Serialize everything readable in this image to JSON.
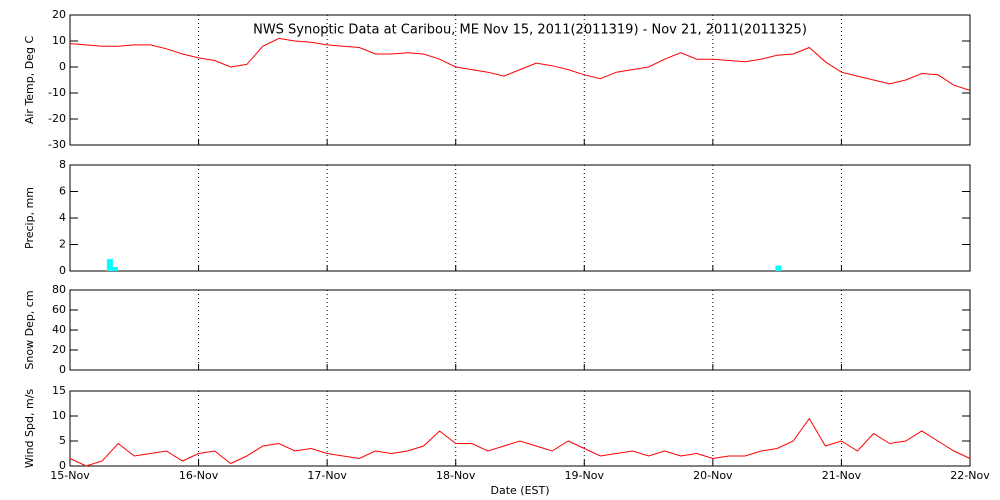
{
  "chart_data": [
    {
      "type": "line",
      "title": "NWS Synoptic Data at Caribou, ME   Nov 15, 2011(2011319) - Nov 21, 2011(2011325)",
      "y_label": "Air Temp, Deg C",
      "xlim": [
        0,
        7
      ],
      "xticks": [
        1,
        2,
        3,
        4,
        5,
        6
      ],
      "grid": true,
      "ylim": [
        -30,
        20
      ],
      "yticks": [
        -30,
        -20,
        -10,
        0,
        10,
        20
      ],
      "x": [
        0,
        0.125,
        0.25,
        0.375,
        0.5,
        0.625,
        0.75,
        0.875,
        1,
        1.125,
        1.25,
        1.375,
        1.5,
        1.625,
        1.75,
        1.875,
        2,
        2.125,
        2.25,
        2.375,
        2.5,
        2.625,
        2.75,
        2.875,
        3,
        3.125,
        3.25,
        3.375,
        3.5,
        3.625,
        3.75,
        3.875,
        4,
        4.125,
        4.25,
        4.375,
        4.5,
        4.625,
        4.75,
        4.875,
        5,
        5.125,
        5.25,
        5.375,
        5.5,
        5.625,
        5.75,
        5.875,
        6,
        6.125,
        6.25,
        6.375,
        6.5,
        6.625,
        6.75,
        6.875,
        7
      ],
      "series": [
        {
          "color": "#ff0000",
          "values": [
            9,
            8.5,
            8,
            8,
            8.5,
            8.5,
            7,
            5,
            3.5,
            2.5,
            0,
            1,
            8,
            11,
            10,
            9.5,
            8.5,
            8,
            7.5,
            5,
            5,
            5.5,
            5,
            3,
            0,
            -1,
            -2,
            -3.5,
            -1,
            1.5,
            0.5,
            -1,
            -3,
            -4.5,
            -2,
            -1,
            0,
            3,
            5.5,
            3,
            3,
            2.5,
            2,
            3,
            4.5,
            5,
            7.5,
            2,
            -2,
            -3.5,
            -5,
            -6.5,
            -5,
            -2.5,
            -3,
            -7,
            -9
          ]
        }
      ]
    },
    {
      "type": "bar",
      "y_label": "Precip, mm",
      "xlim": [
        0,
        7
      ],
      "xticks": [
        1,
        2,
        3,
        4,
        5,
        6
      ],
      "grid": true,
      "ylim": [
        0,
        8
      ],
      "yticks": [
        0,
        2,
        4,
        6,
        8
      ],
      "x": [
        0.31,
        0.35,
        5.51
      ],
      "series": [
        {
          "color": "#00ffff",
          "values": [
            0.9,
            0.3,
            0.4
          ]
        }
      ]
    },
    {
      "type": "line",
      "y_label": "Snow Dep, cm",
      "xlim": [
        0,
        7
      ],
      "xticks": [
        1,
        2,
        3,
        4,
        5,
        6
      ],
      "grid": true,
      "ylim": [
        0,
        80
      ],
      "yticks": [
        0,
        20,
        40,
        60,
        80
      ]
    },
    {
      "type": "line",
      "y_label": "Wind Spd, m/s",
      "x_label": "Date (EST)",
      "xlim": [
        0,
        7
      ],
      "xticks": [
        {
          "value": 0,
          "label": "15-Nov"
        },
        {
          "value": 1,
          "label": "16-Nov"
        },
        {
          "value": 2,
          "label": "17-Nov"
        },
        {
          "value": 3,
          "label": "18-Nov"
        },
        {
          "value": 4,
          "label": "19-Nov"
        },
        {
          "value": 5,
          "label": "20-Nov"
        },
        {
          "value": 6,
          "label": "21-Nov"
        },
        {
          "value": 7,
          "label": "22-Nov"
        }
      ],
      "grid": true,
      "ylim": [
        0,
        15
      ],
      "yticks": [
        0,
        5,
        10,
        15
      ],
      "x": [
        0,
        0.125,
        0.25,
        0.375,
        0.5,
        0.625,
        0.75,
        0.875,
        1,
        1.125,
        1.25,
        1.375,
        1.5,
        1.625,
        1.75,
        1.875,
        2,
        2.125,
        2.25,
        2.375,
        2.5,
        2.625,
        2.75,
        2.875,
        3,
        3.125,
        3.25,
        3.375,
        3.5,
        3.625,
        3.75,
        3.875,
        4,
        4.125,
        4.25,
        4.375,
        4.5,
        4.625,
        4.75,
        4.875,
        5,
        5.125,
        5.25,
        5.375,
        5.5,
        5.625,
        5.75,
        5.875,
        6,
        6.125,
        6.25,
        6.375,
        6.5,
        6.625,
        6.75,
        6.875,
        7
      ],
      "series": [
        {
          "color": "#ff0000",
          "values": [
            1.5,
            0,
            1,
            4.5,
            2,
            2.5,
            3,
            1,
            2.5,
            3,
            0.5,
            2,
            4,
            4.5,
            3,
            3.5,
            2.5,
            2,
            1.5,
            3,
            2.5,
            3,
            4,
            7,
            4.5,
            4.5,
            3,
            4,
            5,
            4,
            3,
            5,
            3.5,
            2,
            2.5,
            3,
            2,
            3,
            2,
            2.5,
            1.5,
            2,
            2,
            3,
            3.5,
            5,
            9.5,
            4,
            5,
            3,
            6.5,
            4.5,
            5,
            7,
            5,
            3,
            1.5
          ]
        }
      ]
    }
  ]
}
